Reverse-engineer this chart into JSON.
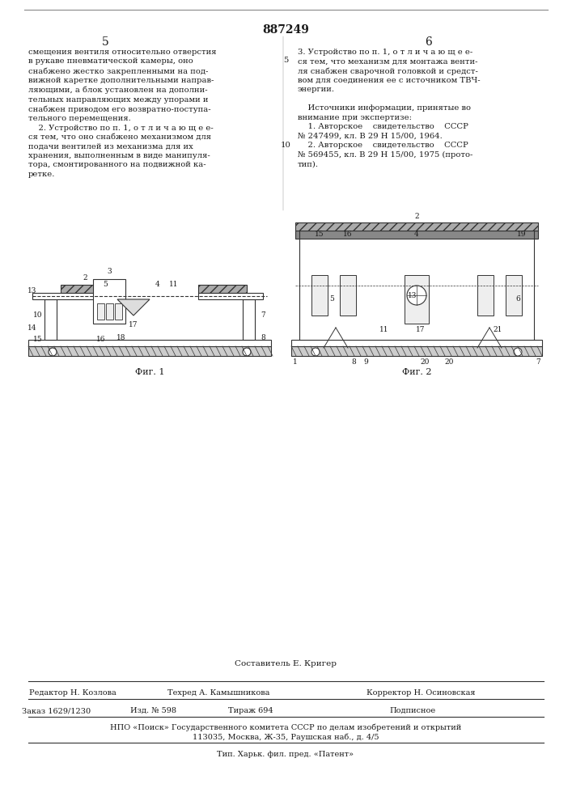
{
  "page_number": "887249",
  "col_left": "5",
  "col_right": "6",
  "background_color": "#ffffff",
  "text_color": "#1a1a1a",
  "font_family": "serif",
  "top_text_left": "смещения вентиля относительно отверстия\nв рукаве пневматической камеры, оно\nснабжено жестко закрепленными на под-\nвижной каретке дополнительными направ-\nляющими, а блок установлен на дополни-\nтельных направляющих между упорами и\nснабжен приводом его возвратно-поступа-\nтельного перемещения.\n    2. Устройство по п. 1, о т л и ч а ю щ е е-\nся тем, что оно снабжено механизмом для\nподачи вентилей из механизма для их\nхранения, выполненным в виде манипуля-\nтора, смонтированного на подвижной ка-\nретке.",
  "top_text_right": "3. Устройство по п. 1, о т л и ч а ю щ е е-\nся тем, что механизм для монтажа венти-\nля снабжен сварочной головкой и средст-\nвом для соединения ее с источником ТВЧ-\nэнергии.\n\n    Источники информации, принятые во\nвнимание при экспертизе:\n    1. Авторское    свидетельство    СССР\n№ 247499, кл. В 29 Н 15/00, 1964.\n    2. Авторское    свидетельство    СССР\n№ 569455, кл. В 29 Н 15/00, 1975 (прото-\nтип).",
  "line_number_5": "5",
  "line_number_10": "10",
  "fig1_caption": "Фиг. 1",
  "fig2_caption": "Фиг. 2",
  "footer_composer": "Составитель Е. Кригер",
  "footer_editor": "Редактор Н. Козлова",
  "footer_tech": "Техред А. Камышникова",
  "footer_corrector": "Корректор Н. Осиновская",
  "footer_order": "Заказ 1629/1230",
  "footer_izd": "Изд. № 598",
  "footer_tiraj": "Тираж 694",
  "footer_podpisnoe": "Подписное",
  "footer_npo": "НПО «Поиск» Государственного комитета СССР по делам изобретений и открытий",
  "footer_address": "113035, Москва, Ж-35, Раушская наб., д. 4/5",
  "footer_tip": "Тип. Харьк. фил. пред. «Патент»"
}
